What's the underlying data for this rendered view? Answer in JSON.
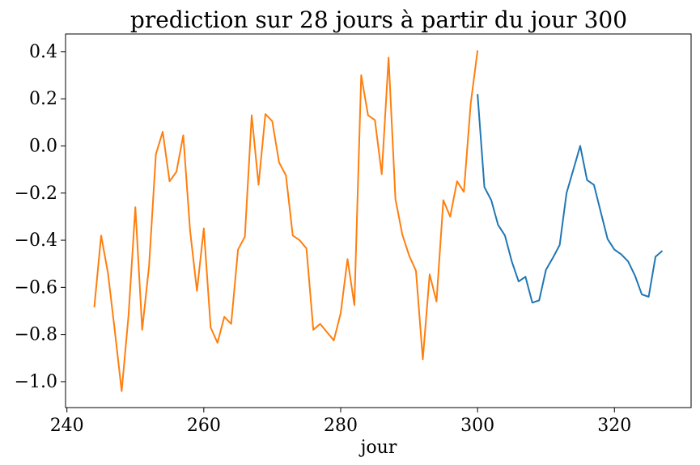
{
  "chart_data": {
    "type": "line",
    "title": "prediction sur 28 jours à partir du jour 300",
    "xlabel": "jour",
    "ylabel": "",
    "xlim": [
      239.8,
      331.2
    ],
    "ylim": [
      -1.11,
      0.475
    ],
    "x_ticks": [
      240,
      260,
      280,
      300,
      320
    ],
    "x_tick_labels": [
      "240",
      "260",
      "280",
      "300",
      "320"
    ],
    "y_ticks": [
      -1.0,
      -0.8,
      -0.6,
      -0.4,
      -0.2,
      0.0,
      0.2,
      0.4
    ],
    "y_tick_labels": [
      "−1.0",
      "−0.8",
      "−0.6",
      "−0.4",
      "−0.2",
      "0.0",
      "0.2",
      "0.4"
    ],
    "grid": false,
    "legend": "none",
    "series": [
      {
        "color": "#1f77b4",
        "x": [
          300,
          301,
          302,
          303,
          304,
          305,
          306,
          307,
          308,
          309,
          310,
          311,
          312,
          313,
          314,
          315,
          316,
          317,
          318,
          319,
          320,
          321,
          322,
          323,
          324,
          325,
          326,
          327
        ],
        "y": [
          0.22,
          -0.175,
          -0.23,
          -0.335,
          -0.38,
          -0.49,
          -0.575,
          -0.555,
          -0.665,
          -0.655,
          -0.525,
          -0.475,
          -0.42,
          -0.2,
          -0.1,
          0.0,
          -0.145,
          -0.165,
          -0.28,
          -0.395,
          -0.44,
          -0.46,
          -0.49,
          -0.55,
          -0.63,
          -0.64,
          -0.47,
          -0.445
        ]
      },
      {
        "color": "#ff7f0e",
        "x": [
          244,
          245,
          246,
          247,
          248,
          249,
          250,
          251,
          252,
          253,
          254,
          255,
          256,
          257,
          258,
          259,
          260,
          261,
          262,
          263,
          264,
          265,
          266,
          267,
          268,
          269,
          270,
          271,
          272,
          273,
          274,
          275,
          276,
          277,
          278,
          279,
          280,
          281,
          282,
          283,
          284,
          285,
          286,
          287,
          288,
          289,
          290,
          291,
          292,
          293,
          294,
          295,
          296,
          297,
          298,
          299,
          300
        ],
        "y": [
          -0.685,
          -0.38,
          -0.54,
          -0.785,
          -1.04,
          -0.72,
          -0.26,
          -0.78,
          -0.51,
          -0.035,
          0.06,
          -0.15,
          -0.11,
          0.045,
          -0.36,
          -0.615,
          -0.35,
          -0.77,
          -0.835,
          -0.725,
          -0.755,
          -0.44,
          -0.385,
          0.13,
          -0.165,
          0.135,
          0.105,
          -0.07,
          -0.125,
          -0.38,
          -0.4,
          -0.435,
          -0.78,
          -0.755,
          -0.79,
          -0.825,
          -0.71,
          -0.48,
          -0.675,
          0.3,
          0.13,
          0.11,
          -0.12,
          0.375,
          -0.225,
          -0.375,
          -0.465,
          -0.53,
          -0.905,
          -0.545,
          -0.66,
          -0.23,
          -0.3,
          -0.15,
          -0.195,
          0.18,
          0.405
        ]
      }
    ]
  }
}
